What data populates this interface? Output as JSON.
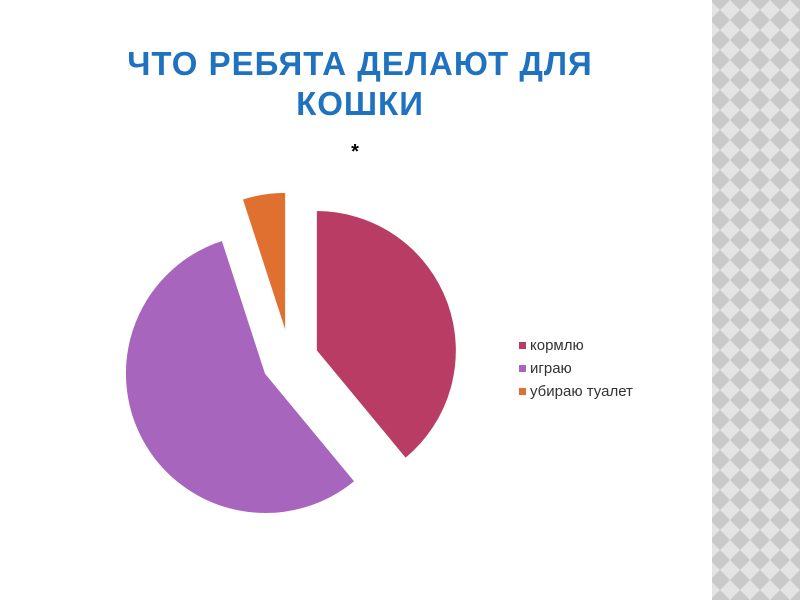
{
  "chart_data": {
    "type": "pie",
    "title": "ЧТО РЕБЯТА ДЕЛАЮТ ДЛЯ КОШКИ",
    "subtitle": "*",
    "categories": [
      "кормлю",
      "играю",
      "убираю туалет"
    ],
    "values": [
      39,
      56,
      5
    ],
    "colors": [
      "#b83c64",
      "#a865be",
      "#e07030"
    ],
    "legend": "right"
  }
}
